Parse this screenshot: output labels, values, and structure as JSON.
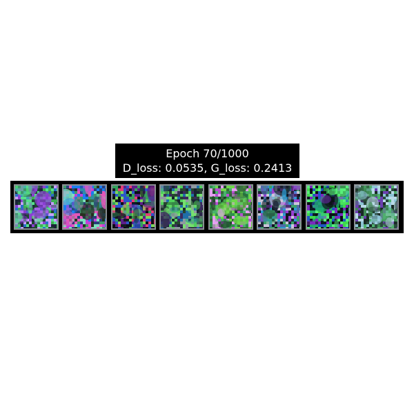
{
  "title": {
    "line1": "Epoch 70/1000",
    "line2": "D_loss: 0.0535, G_loss: 0.2413"
  },
  "samples": [
    {
      "palette": [
        "#1d4a2f",
        "#3fae52",
        "#2a6fc9",
        "#8a3fd1",
        "#56e08c",
        "#1a2436",
        "#c7a0ff"
      ]
    },
    {
      "palette": [
        "#2a3f7a",
        "#c23fd8",
        "#3f9a6b",
        "#1b7cf0",
        "#e457b9",
        "#7ee0c0",
        "#26311f"
      ]
    },
    {
      "palette": [
        "#0b0e16",
        "#5c1f8a",
        "#34a15a",
        "#e23c78",
        "#2c55c8",
        "#7fd65a",
        "#141a22"
      ]
    },
    {
      "palette": [
        "#26452f",
        "#4fcf5c",
        "#1f6ea8",
        "#8e9aa0",
        "#3b2a5e",
        "#77e070",
        "#182430"
      ]
    },
    {
      "palette": [
        "#3a6a3a",
        "#6fd84b",
        "#b54fd0",
        "#2f8f4c",
        "#e5a0f0",
        "#1e3f2a",
        "#4ab26d"
      ]
    },
    {
      "palette": [
        "#1e2736",
        "#4e6ba8",
        "#9a3fd2",
        "#3aa067",
        "#c9c6d8",
        "#12161f",
        "#2a9bd0"
      ]
    },
    {
      "palette": [
        "#0e1a20",
        "#3fd94c",
        "#2155c4",
        "#7a2ac0",
        "#59f07a",
        "#0a0f14",
        "#1fb06a"
      ]
    },
    {
      "palette": [
        "#2a4a3c",
        "#4fb06e",
        "#8cc4d6",
        "#6b3fb0",
        "#3f8a55",
        "#b8d9e6",
        "#1a2a24"
      ]
    }
  ],
  "colors": {
    "strip_background": "#000000",
    "title_background": "#000000",
    "title_text": "#ffffff",
    "tile_border": "#8a8f93"
  }
}
